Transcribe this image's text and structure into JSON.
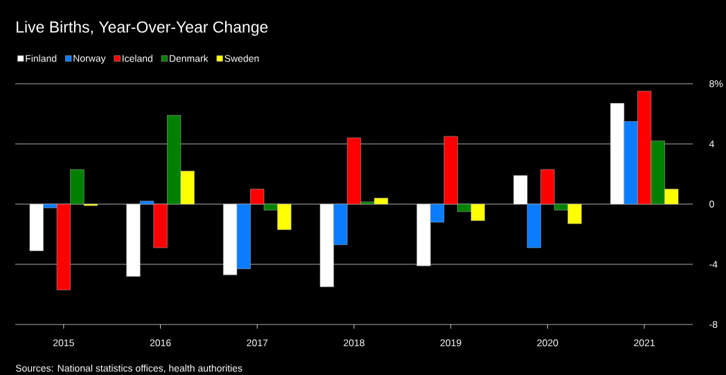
{
  "chart_data": {
    "type": "bar",
    "title": "Live Births, Year-Over-Year Change",
    "categories": [
      "2015",
      "2016",
      "2017",
      "2018",
      "2019",
      "2020",
      "2021"
    ],
    "series": [
      {
        "name": "Finland",
        "color": "#ffffff",
        "values": [
          -3.1,
          -4.8,
          -4.7,
          -5.5,
          -4.1,
          1.9,
          6.7
        ]
      },
      {
        "name": "Norway",
        "color": "#0a7cff",
        "values": [
          -0.25,
          0.2,
          -4.3,
          -2.7,
          -1.2,
          -2.9,
          5.5
        ]
      },
      {
        "name": "Iceland",
        "color": "#ff0000",
        "values": [
          -5.7,
          -2.9,
          1.0,
          4.4,
          4.5,
          2.3,
          7.5
        ]
      },
      {
        "name": "Denmark",
        "color": "#008000",
        "values": [
          2.3,
          5.9,
          -0.4,
          0.15,
          -0.5,
          -0.4,
          4.2
        ]
      },
      {
        "name": "Sweden",
        "color": "#ffff00",
        "values": [
          -0.1,
          2.2,
          -1.7,
          0.4,
          -1.1,
          -1.3,
          1.0
        ]
      }
    ],
    "ylim": [
      -8,
      8
    ],
    "yticks": [
      {
        "value": 8,
        "label": "8%"
      },
      4,
      0,
      -4,
      -8
    ],
    "grid": "y",
    "legend": "top left",
    "annotations": [
      "Sources: National statistics offices, health authorities"
    ]
  }
}
